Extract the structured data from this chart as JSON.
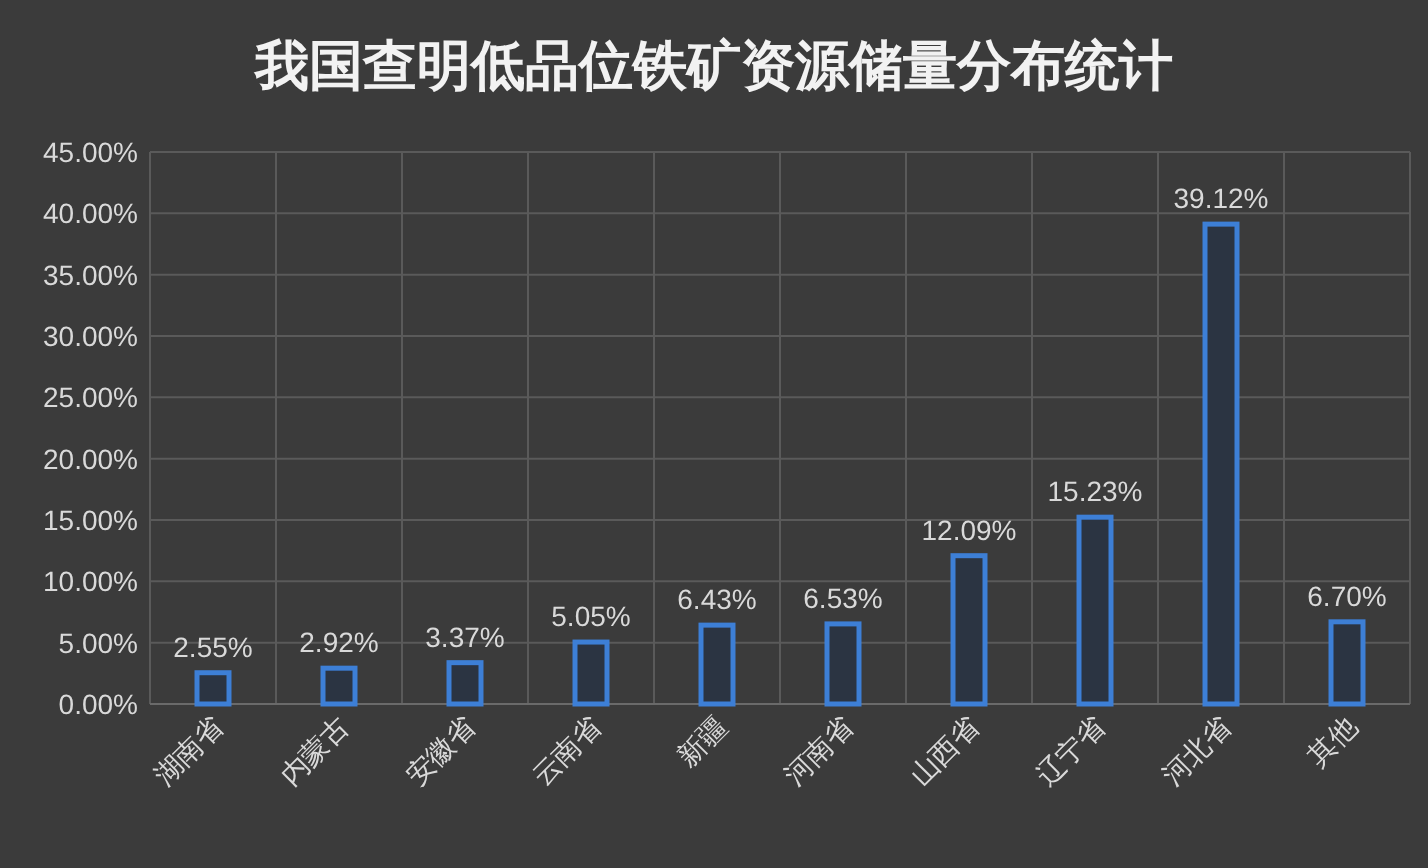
{
  "chart_data": {
    "type": "bar",
    "title": "我国查明低品位铁矿资源储量分布统计",
    "categories": [
      "湖南省",
      "内蒙古",
      "安徽省",
      "云南省",
      "新疆",
      "河南省",
      "山西省",
      "辽宁省",
      "河北省",
      "其他"
    ],
    "values": [
      2.55,
      2.92,
      3.37,
      5.05,
      6.43,
      6.53,
      12.09,
      15.23,
      39.12,
      6.7
    ],
    "value_labels": [
      "2.55%",
      "2.92%",
      "3.37%",
      "5.05%",
      "6.43%",
      "6.53%",
      "12.09%",
      "15.23%",
      "39.12%",
      "6.70%"
    ],
    "color": "#3d7fd6",
    "ylim": [
      0,
      45
    ],
    "yticks": [
      {
        "value": 0,
        "label": "0.00%"
      },
      {
        "value": 5,
        "label": "5.00%"
      },
      {
        "value": 10,
        "label": "10.00%"
      },
      {
        "value": 15,
        "label": "15.00%"
      },
      {
        "value": 20,
        "label": "20.00%"
      },
      {
        "value": 25,
        "label": "25.00%"
      },
      {
        "value": 30,
        "label": "30.00%"
      },
      {
        "value": 35,
        "label": "35.00%"
      },
      {
        "value": 40,
        "label": "40.00%"
      },
      {
        "value": 45,
        "label": "45.00%"
      }
    ],
    "grid": true
  }
}
